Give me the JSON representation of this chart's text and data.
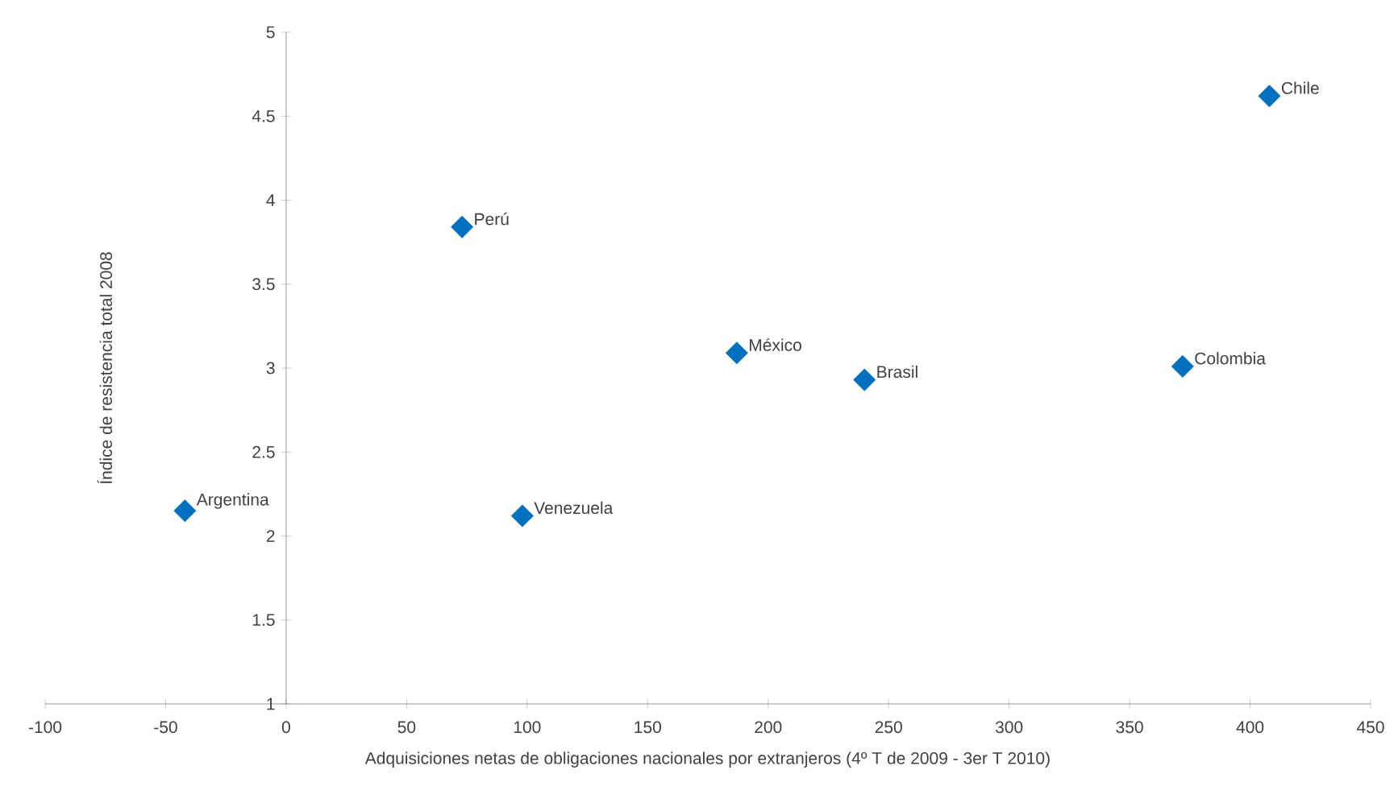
{
  "chart_data": {
    "type": "scatter",
    "xlabel": "Adquisiciones netas de obligaciones nacionales por extranjeros (4º T de 2009 - 3er T 2010)",
    "ylabel": "Índice de resistencia total 2008",
    "xlim": [
      -100,
      450
    ],
    "xticks": [
      -100,
      -50,
      0,
      50,
      100,
      150,
      200,
      250,
      300,
      350,
      400,
      450
    ],
    "ylim": [
      1,
      5
    ],
    "yticks": [
      1,
      1.5,
      2,
      2.5,
      3,
      3.5,
      4,
      4.5,
      5
    ],
    "marker": "diamond",
    "grid": false,
    "legend": false,
    "series": [
      {
        "name": "Argentina",
        "color": "#0070c0",
        "x": [
          -42
        ],
        "values": [
          2.15
        ]
      },
      {
        "name": "Perú",
        "color": "#0070c0",
        "x": [
          73
        ],
        "values": [
          3.84
        ]
      },
      {
        "name": "Venezuela",
        "color": "#0070c0",
        "x": [
          98
        ],
        "values": [
          2.12
        ]
      },
      {
        "name": "México",
        "color": "#0070c0",
        "x": [
          187
        ],
        "values": [
          3.09
        ]
      },
      {
        "name": "Brasil",
        "color": "#0070c0",
        "x": [
          240
        ],
        "values": [
          2.93
        ]
      },
      {
        "name": "Colombia",
        "color": "#0070c0",
        "x": [
          372
        ],
        "values": [
          3.01
        ]
      },
      {
        "name": "Chile",
        "color": "#0070c0",
        "x": [
          408
        ],
        "values": [
          4.62
        ]
      }
    ]
  }
}
